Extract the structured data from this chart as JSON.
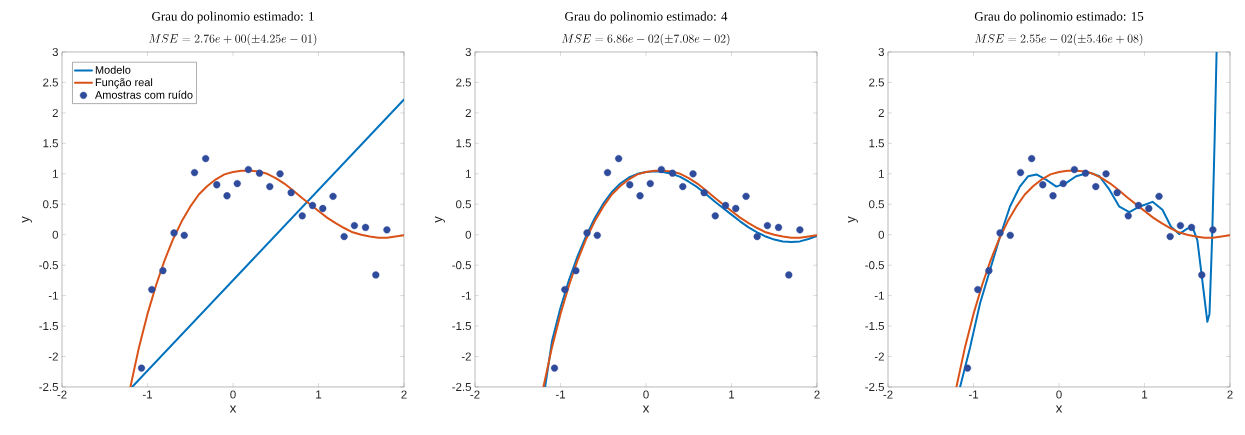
{
  "chart_data": [
    {
      "type": "line",
      "title": "Grau do polinomio estimado: 1",
      "subtitle": "MSE = 2.76e+00(\\pm 4.25e-01)",
      "xlabel": "x",
      "ylabel": "y",
      "xlim": [
        -2,
        2
      ],
      "xticks": [
        -2,
        -1,
        0,
        1,
        2
      ],
      "ylim": [
        -2.5,
        3
      ],
      "yticks": [
        -2.5,
        -2,
        -1.5,
        -1,
        -0.5,
        0,
        0.5,
        1,
        1.5,
        2,
        2.5,
        3
      ],
      "legend": "top left",
      "series": [
        {
          "name": "Modelo",
          "color": "#0072bd",
          "type": "line",
          "marker": "none",
          "x": [
            -1.18,
            2
          ],
          "values": [
            -2.5,
            2.22
          ]
        },
        {
          "name": "Função real",
          "color": "#d95319",
          "type": "line",
          "marker": "none",
          "x": [
            -1.2,
            -1.1,
            -1.0,
            -0.9,
            -0.8,
            -0.7,
            -0.6,
            -0.5,
            -0.4,
            -0.3,
            -0.2,
            -0.1,
            0.0,
            0.1,
            0.2,
            0.3,
            0.4,
            0.5,
            0.6,
            0.7,
            0.8,
            0.9,
            1.0,
            1.1,
            1.2,
            1.3,
            1.4,
            1.5,
            1.6,
            1.7,
            1.8,
            1.9,
            2.0
          ],
          "values": [
            -2.5,
            -1.85,
            -1.3,
            -0.83,
            -0.42,
            -0.07,
            0.22,
            0.46,
            0.66,
            0.8,
            0.91,
            0.99,
            1.03,
            1.05,
            1.05,
            1.04,
            1.0,
            0.93,
            0.84,
            0.73,
            0.61,
            0.5,
            0.39,
            0.28,
            0.19,
            0.11,
            0.04,
            0.0,
            -0.03,
            -0.05,
            -0.05,
            -0.03,
            -0.01
          ]
        },
        {
          "name": "Amostras com ruído",
          "color": "#2f4b9c",
          "type": "scatter",
          "marker": "circle",
          "x": [
            -1.07,
            -0.95,
            -0.82,
            -0.69,
            -0.57,
            -0.45,
            -0.32,
            -0.19,
            -0.07,
            0.05,
            0.18,
            0.31,
            0.43,
            0.55,
            0.68,
            0.81,
            0.93,
            1.05,
            1.17,
            1.3,
            1.42,
            1.55,
            1.67,
            1.8
          ],
          "values": [
            -2.19,
            -0.9,
            -0.59,
            0.03,
            -0.01,
            1.02,
            1.25,
            0.82,
            0.64,
            0.84,
            1.07,
            1.01,
            0.79,
            1.0,
            0.69,
            0.31,
            0.48,
            0.43,
            0.63,
            -0.03,
            0.15,
            0.12,
            -0.66,
            0.08
          ]
        }
      ]
    },
    {
      "type": "line",
      "title": "Grau do polinomio estimado: 4",
      "subtitle": "MSE = 6.86e-02(\\pm 7.08e-02)",
      "xlabel": "x",
      "ylabel": "y",
      "xlim": [
        -2,
        2
      ],
      "xticks": [
        -2,
        -1,
        0,
        1,
        2
      ],
      "ylim": [
        -2.5,
        3
      ],
      "yticks": [
        -2.5,
        -2,
        -1.5,
        -1,
        -0.5,
        0,
        0.5,
        1,
        1.5,
        2,
        2.5,
        3
      ],
      "series": [
        {
          "color": "#0072bd",
          "type": "line",
          "marker": "none",
          "x": [
            -1.18,
            -1.1,
            -1.0,
            -0.9,
            -0.8,
            -0.7,
            -0.6,
            -0.5,
            -0.4,
            -0.3,
            -0.2,
            -0.1,
            0.0,
            0.1,
            0.2,
            0.3,
            0.4,
            0.5,
            0.6,
            0.7,
            0.8,
            0.9,
            1.0,
            1.1,
            1.2,
            1.3,
            1.4,
            1.5,
            1.6,
            1.7,
            1.8,
            1.9,
            2.0
          ],
          "values": [
            -2.5,
            -1.75,
            -1.2,
            -0.74,
            -0.35,
            -0.02,
            0.27,
            0.51,
            0.7,
            0.84,
            0.94,
            1.0,
            1.03,
            1.04,
            1.03,
            1.0,
            0.95,
            0.87,
            0.78,
            0.67,
            0.55,
            0.44,
            0.33,
            0.22,
            0.12,
            0.04,
            -0.03,
            -0.08,
            -0.11,
            -0.12,
            -0.11,
            -0.07,
            -0.02
          ]
        },
        {
          "color": "#d95319",
          "type": "line",
          "marker": "none",
          "x": [
            -1.2,
            -1.1,
            -1.0,
            -0.9,
            -0.8,
            -0.7,
            -0.6,
            -0.5,
            -0.4,
            -0.3,
            -0.2,
            -0.1,
            0.0,
            0.1,
            0.2,
            0.3,
            0.4,
            0.5,
            0.6,
            0.7,
            0.8,
            0.9,
            1.0,
            1.1,
            1.2,
            1.3,
            1.4,
            1.5,
            1.6,
            1.7,
            1.8,
            1.9,
            2.0
          ],
          "values": [
            -2.5,
            -1.85,
            -1.3,
            -0.83,
            -0.42,
            -0.07,
            0.22,
            0.46,
            0.66,
            0.8,
            0.91,
            0.99,
            1.03,
            1.05,
            1.05,
            1.04,
            1.0,
            0.93,
            0.84,
            0.73,
            0.61,
            0.5,
            0.39,
            0.28,
            0.19,
            0.11,
            0.04,
            0.0,
            -0.03,
            -0.05,
            -0.05,
            -0.03,
            -0.01
          ]
        },
        {
          "color": "#2f4b9c",
          "type": "scatter",
          "marker": "circle",
          "x": [
            -1.07,
            -0.95,
            -0.82,
            -0.69,
            -0.57,
            -0.45,
            -0.32,
            -0.19,
            -0.07,
            0.05,
            0.18,
            0.31,
            0.43,
            0.55,
            0.68,
            0.81,
            0.93,
            1.05,
            1.17,
            1.3,
            1.42,
            1.55,
            1.67,
            1.8
          ],
          "values": [
            -2.19,
            -0.9,
            -0.59,
            0.03,
            -0.01,
            1.02,
            1.25,
            0.82,
            0.64,
            0.84,
            1.07,
            1.01,
            0.79,
            1.0,
            0.69,
            0.31,
            0.48,
            0.43,
            0.63,
            -0.03,
            0.15,
            0.12,
            -0.66,
            0.08
          ]
        }
      ]
    },
    {
      "type": "line",
      "title": "Grau do polinomio estimado: 15",
      "subtitle": "MSE = 2.55e-02(\\pm 5.46e+08)",
      "xlabel": "x",
      "ylabel": "y",
      "xlim": [
        -2,
        2
      ],
      "xticks": [
        -2,
        -1,
        0,
        1,
        2
      ],
      "ylim": [
        -2.5,
        3
      ],
      "yticks": [
        -2.5,
        -2,
        -1.5,
        -1,
        -0.5,
        0,
        0.5,
        1,
        1.5,
        2,
        2.5,
        3
      ],
      "series": [
        {
          "color": "#0072bd",
          "type": "line",
          "marker": "none",
          "x": [
            -1.157,
            -1.04,
            -0.924,
            -0.807,
            -0.69,
            -0.574,
            -0.458,
            -0.36,
            -0.264,
            -0.147,
            -0.031,
            0.085,
            0.2,
            0.357,
            0.473,
            0.59,
            0.706,
            0.823,
            0.939,
            1.094,
            1.21,
            1.31,
            1.405,
            1.5,
            1.56,
            1.618,
            1.676,
            1.735,
            1.76,
            1.79,
            1.82,
            1.843
          ],
          "values": [
            -2.5,
            -1.85,
            -1.13,
            -0.58,
            -0.03,
            0.46,
            0.79,
            0.96,
            0.99,
            0.9,
            0.79,
            0.85,
            0.96,
            1.02,
            0.96,
            0.74,
            0.46,
            0.37,
            0.46,
            0.54,
            0.41,
            0.13,
            0.01,
            0.1,
            0.13,
            -0.09,
            -0.75,
            -1.43,
            -1.3,
            -0.09,
            1.56,
            3.0
          ]
        },
        {
          "color": "#d95319",
          "type": "line",
          "marker": "none",
          "x": [
            -1.2,
            -1.1,
            -1.0,
            -0.9,
            -0.8,
            -0.7,
            -0.6,
            -0.5,
            -0.4,
            -0.3,
            -0.2,
            -0.1,
            0.0,
            0.1,
            0.2,
            0.3,
            0.4,
            0.5,
            0.6,
            0.7,
            0.8,
            0.9,
            1.0,
            1.1,
            1.2,
            1.3,
            1.4,
            1.5,
            1.6,
            1.7,
            1.8,
            1.9,
            2.0
          ],
          "values": [
            -2.5,
            -1.85,
            -1.3,
            -0.83,
            -0.42,
            -0.07,
            0.22,
            0.46,
            0.66,
            0.8,
            0.91,
            0.99,
            1.03,
            1.05,
            1.05,
            1.04,
            1.0,
            0.93,
            0.84,
            0.73,
            0.61,
            0.5,
            0.39,
            0.28,
            0.19,
            0.11,
            0.04,
            0.0,
            -0.03,
            -0.05,
            -0.05,
            -0.03,
            -0.01
          ]
        },
        {
          "color": "#2f4b9c",
          "type": "scatter",
          "marker": "circle",
          "x": [
            -1.07,
            -0.95,
            -0.82,
            -0.69,
            -0.57,
            -0.45,
            -0.32,
            -0.19,
            -0.07,
            0.05,
            0.18,
            0.31,
            0.43,
            0.55,
            0.68,
            0.81,
            0.93,
            1.05,
            1.17,
            1.3,
            1.42,
            1.55,
            1.67,
            1.8
          ],
          "values": [
            -2.19,
            -0.9,
            -0.59,
            0.03,
            -0.01,
            1.02,
            1.25,
            0.82,
            0.64,
            0.84,
            1.07,
            1.01,
            0.79,
            1.0,
            0.69,
            0.31,
            0.48,
            0.43,
            0.63,
            -0.03,
            0.15,
            0.12,
            -0.66,
            0.08
          ]
        }
      ]
    }
  ]
}
